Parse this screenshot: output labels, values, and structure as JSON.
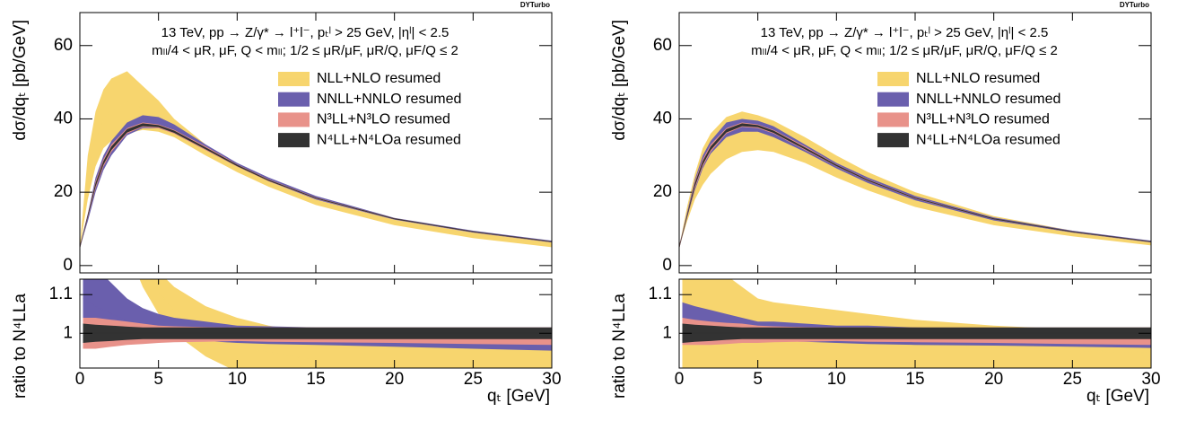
{
  "chart_data": [
    {
      "type": "band",
      "watermark": "DYTurbo",
      "annotations": [
        "13 TeV, pp → Z/γ* → l⁺l⁻, pₜˡ > 25 GeV, |ηˡ| < 2.5",
        "mₗₗ/4 < μR, μF, Q < mₗₗ; 1/2 ≤ μR/μF, μR/Q, μF/Q ≤ 2"
      ],
      "y_label": "dσ/dqₜ [pb/GeV]",
      "x_label": "qₜ [GeV]",
      "xlim": [
        0,
        30
      ],
      "xticks": [
        0,
        5,
        10,
        15,
        20,
        25,
        30
      ],
      "ylim": [
        -2,
        69
      ],
      "yticks": [
        0,
        20,
        40,
        60
      ],
      "x": [
        0,
        0.5,
        1,
        1.5,
        2,
        3,
        4,
        5,
        6,
        8,
        10,
        12,
        15,
        20,
        25,
        30
      ],
      "series": [
        {
          "name": "NLL+NLO   resumed",
          "color": "#f7d56e",
          "low": [
            5,
            18,
            27,
            32,
            34,
            36,
            37,
            36.5,
            35,
            30,
            25.5,
            21.5,
            16.5,
            11,
            7.5,
            5
          ],
          "high": [
            5,
            30,
            42,
            48,
            51,
            53,
            49,
            45,
            40,
            33,
            27.5,
            23,
            18,
            12.5,
            9,
            6.5
          ]
        },
        {
          "name": "NNLL+NNLO resumed",
          "color": "#6a5fad",
          "low": [
            5,
            12,
            20,
            26,
            30,
            35.5,
            37.5,
            37.5,
            36,
            31.5,
            27,
            23,
            18,
            12.5,
            9,
            6.3
          ],
          "high": [
            5,
            14,
            24,
            30,
            34,
            39,
            41,
            40.5,
            38.5,
            33,
            28,
            24,
            19,
            13,
            9.5,
            6.8
          ]
        },
        {
          "name": "N³LL+N³LO  resumed",
          "color": "#e8928a",
          "low": [
            5,
            13,
            21,
            27,
            31,
            36,
            37.8,
            37.5,
            36,
            31.5,
            27,
            23,
            18.2,
            12.6,
            9.1,
            6.4
          ],
          "high": [
            5,
            14,
            23,
            29,
            33,
            37.5,
            39,
            38.5,
            37,
            32.5,
            27.6,
            23.5,
            18.6,
            12.9,
            9.3,
            6.6
          ]
        },
        {
          "name": "N⁴LL+N⁴LOa resumed",
          "color": "#333333",
          "low": [
            5,
            13.3,
            21.5,
            27.5,
            31.5,
            36.3,
            38,
            37.7,
            36.2,
            31.7,
            27.1,
            23.1,
            18.3,
            12.65,
            9.15,
            6.45
          ],
          "high": [
            5,
            13.7,
            22.5,
            28.5,
            32.5,
            37.2,
            38.8,
            38.3,
            36.8,
            32.2,
            27.5,
            23.4,
            18.5,
            12.85,
            9.3,
            6.6
          ]
        }
      ],
      "ratio": {
        "y_label": "ratio to N⁴LLa",
        "ylim": [
          0.91,
          1.14
        ],
        "yticks": [
          1,
          1.1
        ],
        "x": [
          0.2,
          1,
          2,
          3,
          4,
          5,
          6,
          8,
          10,
          12,
          15,
          20,
          25,
          30
        ],
        "series": [
          {
            "color": "#f7d56e",
            "low": [
              1.6,
              1.5,
              1.35,
              1.22,
              1.12,
              1.05,
              1.0,
              0.94,
              0.9,
              0.88,
              0.86,
              0.84,
              0.83,
              0.82
            ],
            "high": [
              2.2,
              2.0,
              1.7,
              1.45,
              1.25,
              1.16,
              1.12,
              1.07,
              1.04,
              1.02,
              1.0,
              0.985,
              0.975,
              0.97
            ]
          },
          {
            "color": "#6a5fad",
            "low": [
              0.98,
              0.97,
              0.97,
              0.975,
              0.98,
              0.985,
              0.985,
              0.98,
              0.975,
              0.972,
              0.97,
              0.965,
              0.96,
              0.955
            ],
            "high": [
              1.2,
              1.17,
              1.13,
              1.09,
              1.065,
              1.05,
              1.04,
              1.03,
              1.02,
              1.018,
              1.015,
              1.015,
              1.015,
              1.015
            ]
          },
          {
            "color": "#e8928a",
            "low": [
              0.96,
              0.96,
              0.965,
              0.97,
              0.972,
              0.975,
              0.977,
              0.978,
              0.98,
              0.978,
              0.977,
              0.975,
              0.972,
              0.97
            ],
            "high": [
              1.04,
              1.04,
              1.035,
              1.03,
              1.025,
              1.02,
              1.018,
              1.016,
              1.015,
              1.015,
              1.015,
              1.015,
              1.015,
              1.015
            ]
          },
          {
            "color": "#333333",
            "low": [
              0.975,
              0.978,
              0.98,
              0.983,
              0.985,
              0.985,
              0.985,
              0.985,
              0.985,
              0.985,
              0.985,
              0.985,
              0.985,
              0.985
            ],
            "high": [
              1.025,
              1.022,
              1.02,
              1.017,
              1.015,
              1.015,
              1.015,
              1.015,
              1.015,
              1.015,
              1.015,
              1.015,
              1.015,
              1.015
            ]
          }
        ]
      }
    },
    {
      "type": "band",
      "watermark": "DYTurbo",
      "annotations": [
        "13 TeV, pp → Z/γ* → l⁺l⁻, pₜˡ > 25 GeV, |ηˡ| < 2.5",
        "mₗₗ/4 < μR, μF, Q < mₗₗ; 1/2 ≤ μR/μF, μR/Q, μF/Q ≤ 2"
      ],
      "y_label": "dσ/dqₜ [pb/GeV]",
      "x_label": "qₜ [GeV]",
      "xlim": [
        0,
        30
      ],
      "xticks": [
        0,
        5,
        10,
        15,
        20,
        25,
        30
      ],
      "ylim": [
        -2,
        69
      ],
      "yticks": [
        0,
        20,
        40,
        60
      ],
      "x": [
        0,
        0.5,
        1,
        1.5,
        2,
        3,
        4,
        5,
        6,
        8,
        10,
        12,
        15,
        20,
        25,
        30
      ],
      "series": [
        {
          "name": "NLL+NLO resumed",
          "color": "#f7d56e",
          "low": [
            5,
            12,
            18,
            22,
            25,
            29,
            31,
            31.5,
            31,
            28,
            24,
            20.5,
            16,
            11,
            8,
            5.5
          ],
          "high": [
            5,
            16,
            25,
            32,
            36,
            40.5,
            42,
            41,
            39.5,
            35,
            30,
            25.5,
            20,
            13.5,
            9.5,
            6.5
          ]
        },
        {
          "name": "NNLL+NNLO resumed",
          "color": "#6a5fad",
          "low": [
            5,
            13,
            20.5,
            26.5,
            30.5,
            35,
            36.5,
            36.5,
            35,
            31,
            26.5,
            22.5,
            17.8,
            12.3,
            9,
            6.3
          ],
          "high": [
            5,
            14.5,
            23.5,
            30,
            34,
            39,
            40,
            39.5,
            38,
            33,
            28,
            24,
            19,
            13.1,
            9.5,
            6.8
          ]
        },
        {
          "name": "N³LL+N³LO resumed",
          "color": "#e8928a",
          "low": [
            5,
            13,
            21,
            27,
            31,
            36,
            37.8,
            37.5,
            36,
            31.5,
            27,
            23,
            18.2,
            12.6,
            9.1,
            6.4
          ],
          "high": [
            5,
            14,
            23,
            29,
            33,
            37.5,
            39,
            38.5,
            37,
            32.5,
            27.6,
            23.5,
            18.6,
            12.9,
            9.3,
            6.6
          ]
        },
        {
          "name": "N⁴LL+N⁴LOa resumed",
          "color": "#333333",
          "low": [
            5,
            13.3,
            21.5,
            27.5,
            31.5,
            36.3,
            38,
            37.7,
            36.2,
            31.7,
            27.1,
            23.1,
            18.3,
            12.65,
            9.15,
            6.45
          ],
          "high": [
            5,
            13.7,
            22.5,
            28.5,
            32.5,
            37.2,
            38.8,
            38.3,
            36.8,
            32.2,
            27.5,
            23.4,
            18.5,
            12.85,
            9.3,
            6.6
          ]
        }
      ],
      "ratio": {
        "y_label": "ratio to N⁴LLa",
        "ylim": [
          0.91,
          1.14
        ],
        "yticks": [
          1,
          1.1
        ],
        "x": [
          0.2,
          1,
          2,
          3,
          4,
          5,
          6,
          8,
          10,
          12,
          15,
          20,
          25,
          30
        ],
        "series": [
          {
            "color": "#f7d56e",
            "low": [
              0.9,
              0.9,
              0.9,
              0.9,
              0.9,
              0.9,
              0.9,
              0.9,
              0.9,
              0.9,
              0.9,
              0.9,
              0.9,
              0.9
            ],
            "high": [
              1.2,
              1.18,
              1.17,
              1.15,
              1.12,
              1.09,
              1.08,
              1.07,
              1.06,
              1.05,
              1.035,
              1.02,
              1.01,
              1.0
            ]
          },
          {
            "color": "#6a5fad",
            "low": [
              0.99,
              0.985,
              0.98,
              0.98,
              0.98,
              0.98,
              0.98,
              0.978,
              0.975,
              0.972,
              0.97,
              0.968,
              0.965,
              0.962
            ],
            "high": [
              1.08,
              1.07,
              1.06,
              1.05,
              1.04,
              1.03,
              1.03,
              1.025,
              1.02,
              1.02,
              1.015,
              1.01,
              1.01,
              1.01
            ]
          },
          {
            "color": "#e8928a",
            "low": [
              0.97,
              0.97,
              0.97,
              0.972,
              0.975,
              0.975,
              0.977,
              0.978,
              0.98,
              0.978,
              0.977,
              0.975,
              0.972,
              0.97
            ],
            "high": [
              1.04,
              1.035,
              1.03,
              1.027,
              1.025,
              1.02,
              1.018,
              1.016,
              1.015,
              1.015,
              1.015,
              1.015,
              1.015,
              1.015
            ]
          },
          {
            "color": "#333333",
            "low": [
              0.975,
              0.978,
              0.98,
              0.983,
              0.985,
              0.985,
              0.985,
              0.985,
              0.985,
              0.985,
              0.985,
              0.985,
              0.985,
              0.985
            ],
            "high": [
              1.025,
              1.022,
              1.02,
              1.017,
              1.015,
              1.015,
              1.015,
              1.015,
              1.015,
              1.015,
              1.015,
              1.015,
              1.015,
              1.015
            ]
          }
        ]
      }
    }
  ]
}
